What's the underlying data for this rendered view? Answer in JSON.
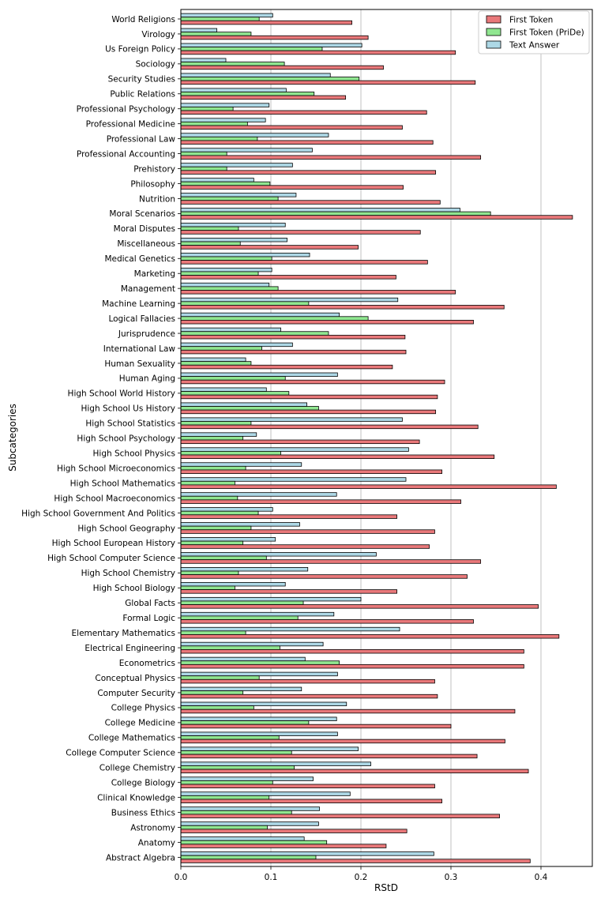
{
  "chart_data": {
    "type": "bar",
    "orientation": "horizontal",
    "title": "",
    "xlabel": "RStD",
    "ylabel": "Subcategories",
    "xlim": [
      0,
      0.45
    ],
    "xticks": [
      "0.0",
      "0.1",
      "0.2",
      "0.3",
      "0.4"
    ],
    "xtick_values": [
      0,
      0.1,
      0.2,
      0.3,
      0.4
    ],
    "grid": "vertical",
    "legend_position": "top-right",
    "colors": {
      "first_token": "#e9787a",
      "pride": "#90e690",
      "text_answer": "#add8e6",
      "edge": "#000000",
      "grid": "#c0c0c0"
    },
    "categories": [
      "World Religions",
      "Virology",
      "Us Foreign Policy",
      "Sociology",
      "Security Studies",
      "Public Relations",
      "Professional Psychology",
      "Professional Medicine",
      "Professional Law",
      "Professional Accounting",
      "Prehistory",
      "Philosophy",
      "Nutrition",
      "Moral Scenarios",
      "Moral Disputes",
      "Miscellaneous",
      "Medical Genetics",
      "Marketing",
      "Management",
      "Machine Learning",
      "Logical Fallacies",
      "Jurisprudence",
      "International Law",
      "Human Sexuality",
      "Human Aging",
      "High School World History",
      "High School Us History",
      "High School Statistics",
      "High School Psychology",
      "High School Physics",
      "High School Microeconomics",
      "High School Mathematics",
      "High School Macroeconomics",
      "High School Government And Politics",
      "High School Geography",
      "High School European History",
      "High School Computer Science",
      "High School Chemistry",
      "High School Biology",
      "Global Facts",
      "Formal Logic",
      "Elementary Mathematics",
      "Electrical Engineering",
      "Econometrics",
      "Conceptual Physics",
      "Computer Security",
      "College Physics",
      "College Medicine",
      "College Mathematics",
      "College Computer Science",
      "College Chemistry",
      "College Biology",
      "Clinical Knowledge",
      "Business Ethics",
      "Astronomy",
      "Anatomy",
      "Abstract Algebra"
    ],
    "series": [
      {
        "name": "First Token",
        "key": "first_token",
        "values": [
          0.19,
          0.208,
          0.305,
          0.225,
          0.327,
          0.183,
          0.273,
          0.246,
          0.28,
          0.333,
          0.283,
          0.247,
          0.288,
          0.435,
          0.266,
          0.197,
          0.274,
          0.239,
          0.305,
          0.359,
          0.325,
          0.249,
          0.25,
          0.235,
          0.293,
          0.285,
          0.283,
          0.33,
          0.265,
          0.348,
          0.29,
          0.417,
          0.311,
          0.24,
          0.282,
          0.276,
          0.333,
          0.318,
          0.24,
          0.397,
          0.325,
          0.42,
          0.381,
          0.381,
          0.282,
          0.285,
          0.371,
          0.3,
          0.36,
          0.329,
          0.386,
          0.282,
          0.29,
          0.354,
          0.251,
          0.228,
          0.388
        ]
      },
      {
        "name": "First Token (PriDe)",
        "key": "pride",
        "values": [
          0.087,
          0.078,
          0.157,
          0.115,
          0.198,
          0.148,
          0.058,
          0.074,
          0.085,
          0.051,
          0.051,
          0.099,
          0.108,
          0.344,
          0.064,
          0.066,
          0.101,
          0.086,
          0.108,
          0.142,
          0.208,
          0.164,
          0.09,
          0.078,
          0.116,
          0.12,
          0.153,
          0.078,
          0.069,
          0.111,
          0.072,
          0.06,
          0.063,
          0.086,
          0.078,
          0.069,
          0.095,
          0.064,
          0.06,
          0.136,
          0.13,
          0.072,
          0.11,
          0.176,
          0.087,
          0.069,
          0.081,
          0.142,
          0.109,
          0.123,
          0.126,
          0.102,
          0.098,
          0.123,
          0.096,
          0.162,
          0.15
        ]
      },
      {
        "name": "Text Answer",
        "key": "text_answer",
        "values": [
          0.102,
          0.04,
          0.201,
          0.05,
          0.166,
          0.117,
          0.098,
          0.094,
          0.164,
          0.146,
          0.124,
          0.081,
          0.128,
          0.31,
          0.116,
          0.118,
          0.143,
          0.101,
          0.098,
          0.241,
          0.176,
          0.111,
          0.124,
          0.072,
          0.174,
          0.095,
          0.14,
          0.246,
          0.084,
          0.253,
          0.134,
          0.25,
          0.173,
          0.102,
          0.132,
          0.105,
          0.217,
          0.141,
          0.116,
          0.2,
          0.17,
          0.243,
          0.158,
          0.138,
          0.174,
          0.134,
          0.184,
          0.173,
          0.174,
          0.197,
          0.211,
          0.147,
          0.188,
          0.154,
          0.153,
          0.137,
          0.281
        ]
      }
    ]
  }
}
